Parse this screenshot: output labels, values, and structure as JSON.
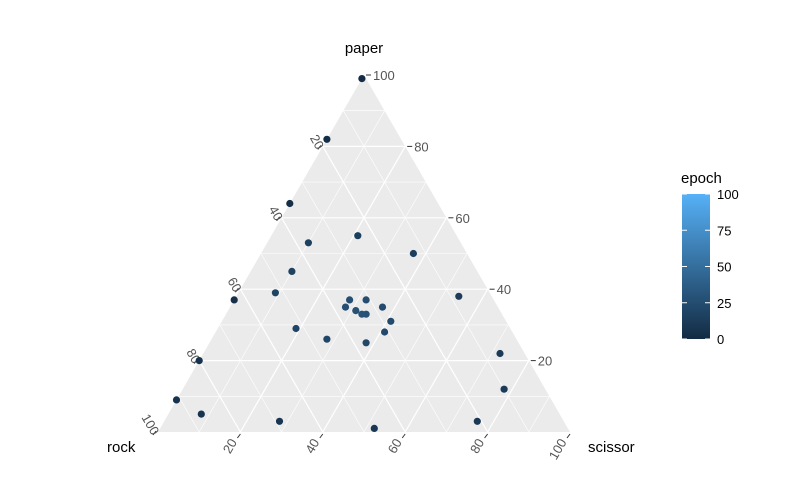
{
  "chart_data": {
    "type": "ternary-scatter",
    "axes": {
      "top": "paper",
      "left": "rock",
      "right": "scissor"
    },
    "ticks": [
      "20",
      "40",
      "60",
      "80",
      "100"
    ],
    "grid": true,
    "legend": {
      "title": "epoch",
      "position": "right",
      "range": [
        0,
        100
      ],
      "ticks": [
        "0",
        "25",
        "50",
        "75",
        "100"
      ],
      "color_low": "#132B43",
      "color_high": "#56B1F7"
    },
    "points": [
      {
        "paper": 99,
        "rock": 1,
        "scissor": 0,
        "epoch": 1
      },
      {
        "paper": 82,
        "rock": 18,
        "scissor": 0,
        "epoch": 2
      },
      {
        "paper": 64,
        "rock": 36,
        "scissor": 0,
        "epoch": 3
      },
      {
        "paper": 37,
        "rock": 63,
        "scissor": 0,
        "epoch": 4
      },
      {
        "paper": 20,
        "rock": 80,
        "scissor": 0,
        "epoch": 5
      },
      {
        "paper": 9,
        "rock": 91,
        "scissor": 0,
        "epoch": 6
      },
      {
        "paper": 5,
        "rock": 87,
        "scissor": 8,
        "epoch": 7
      },
      {
        "paper": 3,
        "rock": 69,
        "scissor": 28,
        "epoch": 8
      },
      {
        "paper": 1,
        "rock": 47,
        "scissor": 52,
        "epoch": 9
      },
      {
        "paper": 3,
        "rock": 21,
        "scissor": 76,
        "epoch": 10
      },
      {
        "paper": 12,
        "rock": 10,
        "scissor": 78,
        "epoch": 11
      },
      {
        "paper": 22,
        "rock": 6,
        "scissor": 72,
        "epoch": 12
      },
      {
        "paper": 38,
        "rock": 8,
        "scissor": 54,
        "epoch": 13
      },
      {
        "paper": 50,
        "rock": 13,
        "scissor": 37,
        "epoch": 14
      },
      {
        "paper": 55,
        "rock": 24,
        "scissor": 21,
        "epoch": 15
      },
      {
        "paper": 53,
        "rock": 37,
        "scissor": 10,
        "epoch": 16
      },
      {
        "paper": 45,
        "rock": 45,
        "scissor": 10,
        "epoch": 17
      },
      {
        "paper": 39,
        "rock": 52,
        "scissor": 9,
        "epoch": 18
      },
      {
        "paper": 29,
        "rock": 52,
        "scissor": 19,
        "epoch": 19
      },
      {
        "paper": 26,
        "rock": 46,
        "scissor": 28,
        "epoch": 20
      },
      {
        "paper": 25,
        "rock": 37,
        "scissor": 38,
        "epoch": 21
      },
      {
        "paper": 28,
        "rock": 31,
        "scissor": 41,
        "epoch": 22
      },
      {
        "paper": 31,
        "rock": 28,
        "scissor": 41,
        "epoch": 23
      },
      {
        "paper": 35,
        "rock": 28,
        "scissor": 37,
        "epoch": 24
      },
      {
        "paper": 37,
        "rock": 31,
        "scissor": 32,
        "epoch": 25
      },
      {
        "paper": 37,
        "rock": 35,
        "scissor": 28,
        "epoch": 26
      },
      {
        "paper": 35,
        "rock": 37,
        "scissor": 28,
        "epoch": 27
      },
      {
        "paper": 34,
        "rock": 35,
        "scissor": 31,
        "epoch": 28
      },
      {
        "paper": 33,
        "rock": 33,
        "scissor": 34,
        "epoch": 29
      },
      {
        "paper": 33,
        "rock": 34,
        "scissor": 33,
        "epoch": 30
      }
    ]
  }
}
